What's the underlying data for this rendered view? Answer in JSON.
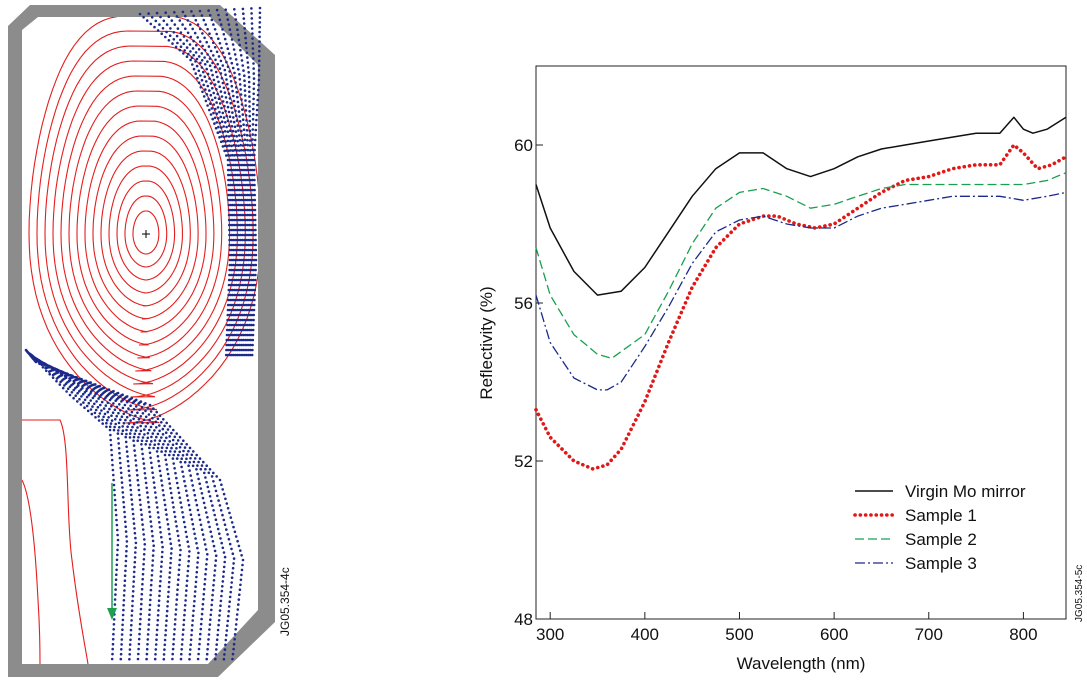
{
  "left_figure": {
    "id_label": "JG05.354-4c",
    "colors": {
      "vessel": "#8c8c8c",
      "flux": "#e41e1e",
      "dots": "#1c2a8c",
      "arrow": "#1ea050"
    },
    "flux_surface_count": 14,
    "open_field_line_count": 15
  },
  "chart_data": {
    "type": "line",
    "id_label": "JG05.354-5c",
    "xlabel": "Wavelength (nm)",
    "ylabel": "Reflectivity (%)",
    "xlim": [
      285,
      845
    ],
    "ylim": [
      48,
      62
    ],
    "xticks": [
      300,
      400,
      500,
      600,
      700,
      800
    ],
    "yticks": [
      48,
      52,
      56,
      60
    ],
    "grid": false,
    "legend_position": "bottom-right",
    "series": [
      {
        "name": "Virgin Mo mirror",
        "color": "#111111",
        "style": "solid",
        "x": [
          285,
          300,
          325,
          350,
          375,
          400,
          425,
          450,
          475,
          500,
          525,
          550,
          575,
          600,
          625,
          650,
          675,
          700,
          725,
          750,
          775,
          790,
          800,
          810,
          825,
          845
        ],
        "y": [
          59.0,
          57.9,
          56.8,
          56.2,
          56.3,
          56.9,
          57.8,
          58.7,
          59.4,
          59.8,
          59.8,
          59.4,
          59.2,
          59.4,
          59.7,
          59.9,
          60.0,
          60.1,
          60.2,
          60.3,
          60.3,
          60.7,
          60.4,
          60.3,
          60.4,
          60.7
        ]
      },
      {
        "name": "Sample 1",
        "color": "#e01818",
        "style": "dotted",
        "x": [
          285,
          300,
          325,
          345,
          360,
          375,
          400,
          425,
          450,
          475,
          500,
          525,
          540,
          560,
          580,
          600,
          625,
          650,
          675,
          700,
          725,
          750,
          775,
          790,
          800,
          815,
          830,
          845
        ],
        "y": [
          53.3,
          52.6,
          52.0,
          51.8,
          51.9,
          52.3,
          53.5,
          55.0,
          56.4,
          57.4,
          58.0,
          58.2,
          58.2,
          58.0,
          57.9,
          58.0,
          58.4,
          58.8,
          59.1,
          59.2,
          59.4,
          59.5,
          59.5,
          60.0,
          59.8,
          59.4,
          59.5,
          59.7
        ]
      },
      {
        "name": "Sample 2",
        "color": "#18a050",
        "style": "dashed",
        "x": [
          285,
          300,
          325,
          350,
          365,
          400,
          425,
          450,
          475,
          500,
          525,
          550,
          575,
          600,
          625,
          650,
          675,
          700,
          725,
          750,
          775,
          800,
          825,
          845
        ],
        "y": [
          57.4,
          56.2,
          55.2,
          54.7,
          54.6,
          55.2,
          56.3,
          57.5,
          58.4,
          58.8,
          58.9,
          58.7,
          58.4,
          58.5,
          58.7,
          58.9,
          59.0,
          59.0,
          59.0,
          59.0,
          59.0,
          59.0,
          59.1,
          59.3
        ]
      },
      {
        "name": "Sample 3",
        "color": "#1a2a8a",
        "style": "dashdot",
        "x": [
          285,
          300,
          325,
          350,
          360,
          375,
          400,
          425,
          450,
          475,
          500,
          525,
          550,
          575,
          600,
          625,
          650,
          675,
          700,
          725,
          750,
          775,
          800,
          825,
          845
        ],
        "y": [
          56.2,
          55.0,
          54.1,
          53.8,
          53.8,
          54.0,
          54.9,
          55.9,
          57.0,
          57.8,
          58.1,
          58.2,
          58.0,
          57.9,
          57.9,
          58.2,
          58.4,
          58.5,
          58.6,
          58.7,
          58.7,
          58.7,
          58.6,
          58.7,
          58.8
        ]
      }
    ]
  }
}
